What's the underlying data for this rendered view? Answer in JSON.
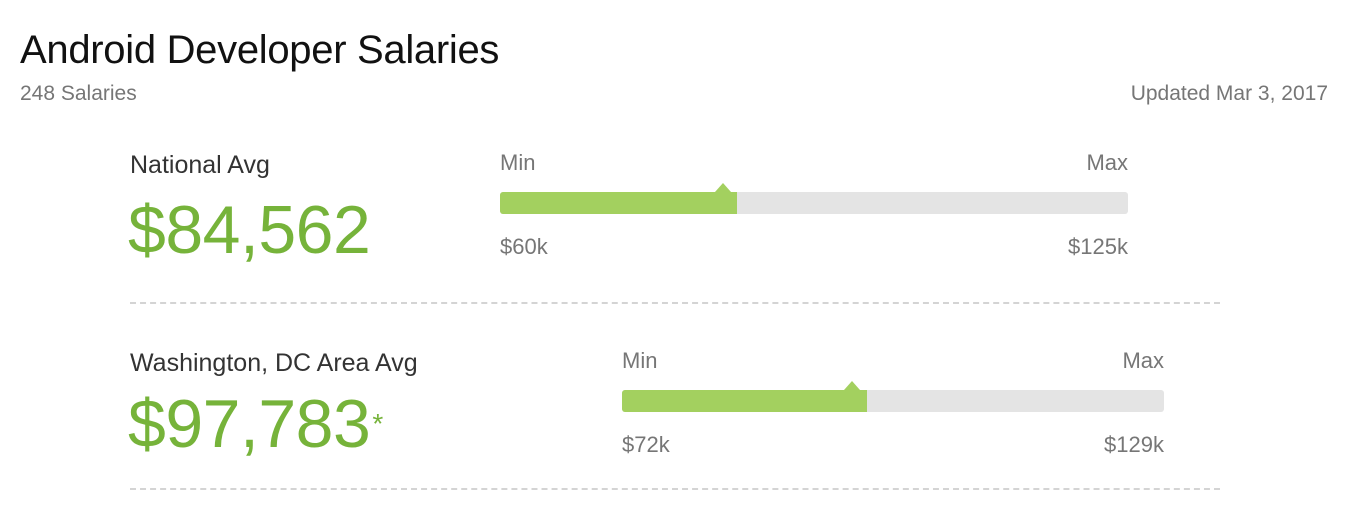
{
  "header": {
    "title": "Android Developer Salaries",
    "count": "248 Salaries",
    "updated": "Updated Mar 3, 2017"
  },
  "salaries": [
    {
      "label": "National Avg",
      "amount": "$84,562",
      "asterisk": "",
      "min_label": "Min",
      "max_label": "Max",
      "min_value": "$60k",
      "max_value": "$125k",
      "min_num": 60000,
      "max_num": 125000,
      "avg_num": 84562,
      "accent": "#76b33a",
      "bar_fill": "#a3d05f",
      "bar_track": "#e4e4e4"
    },
    {
      "label": "Washington, DC Area Avg",
      "amount": "$97,783",
      "asterisk": "*",
      "min_label": "Min",
      "max_label": "Max",
      "min_value": "$72k",
      "max_value": "$129k",
      "min_num": 72000,
      "max_num": 129000,
      "avg_num": 97783,
      "accent": "#76b33a",
      "bar_fill": "#a3d05f",
      "bar_track": "#e4e4e4"
    }
  ]
}
